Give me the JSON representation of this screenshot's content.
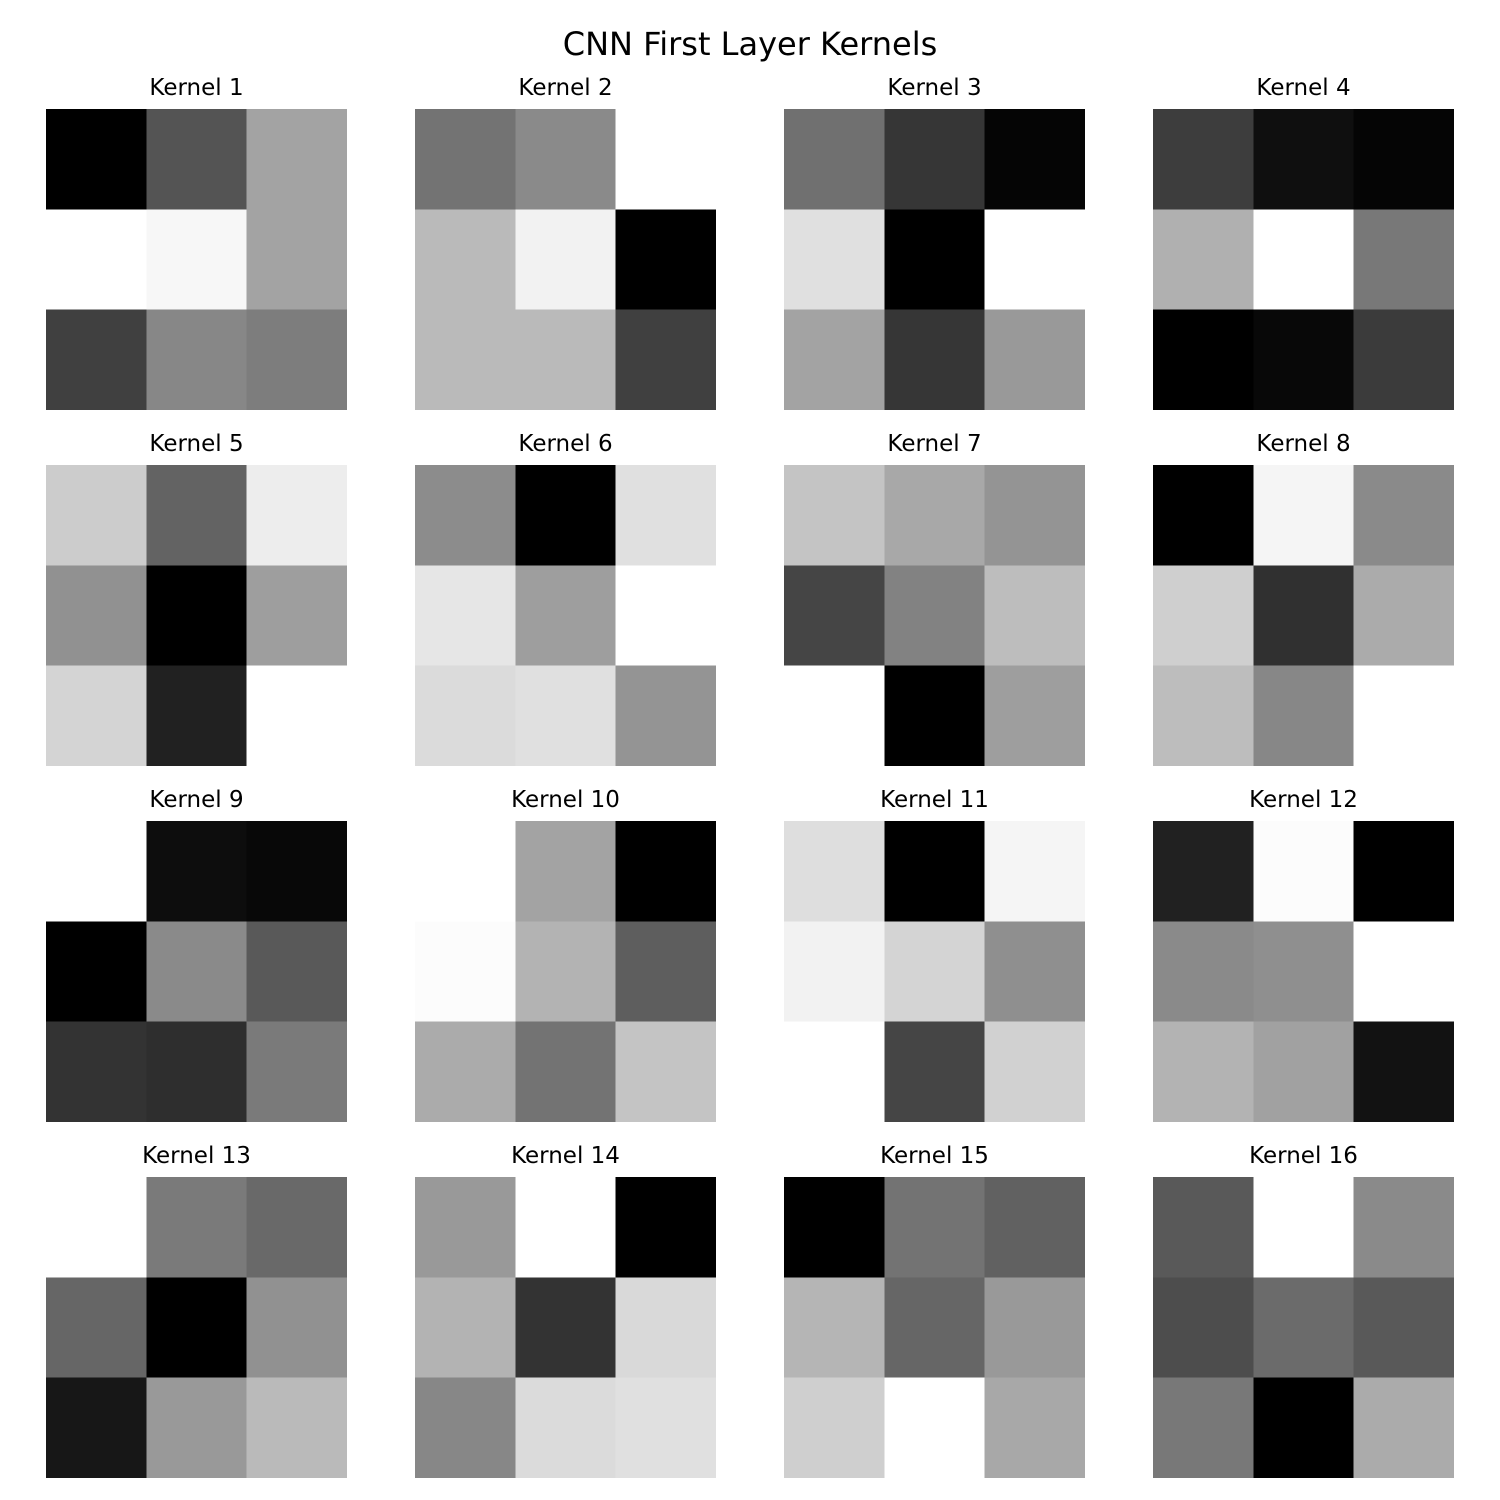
{
  "chart_data": {
    "type": "heatmap",
    "title": "CNN First Layer Kernels",
    "colormap": "gray",
    "value_scale": "grayscale intensity per cell, 0 = black, 1 = white",
    "grid": false,
    "axes": "off",
    "panels": [
      {
        "title": "Kernel 1",
        "values": [
          [
            0.0,
            0.33,
            0.64
          ],
          [
            1.0,
            0.97,
            0.64
          ],
          [
            0.25,
            0.53,
            0.49
          ]
        ]
      },
      {
        "title": "Kernel 2",
        "values": [
          [
            0.45,
            0.54,
            1.0
          ],
          [
            0.73,
            0.95,
            0.0
          ],
          [
            0.73,
            0.73,
            0.25
          ]
        ]
      },
      {
        "title": "Kernel 3",
        "values": [
          [
            0.44,
            0.21,
            0.02
          ],
          [
            0.88,
            0.0,
            1.0
          ],
          [
            0.64,
            0.21,
            0.6
          ]
        ]
      },
      {
        "title": "Kernel 4",
        "values": [
          [
            0.24,
            0.06,
            0.02
          ],
          [
            0.69,
            1.0,
            0.47
          ],
          [
            0.0,
            0.03,
            0.23
          ]
        ]
      },
      {
        "title": "Kernel 5",
        "values": [
          [
            0.8,
            0.39,
            0.93
          ],
          [
            0.57,
            0.0,
            0.62
          ],
          [
            0.83,
            0.13,
            1.0
          ]
        ]
      },
      {
        "title": "Kernel 6",
        "values": [
          [
            0.55,
            0.0,
            0.88
          ],
          [
            0.9,
            0.62,
            1.0
          ],
          [
            0.86,
            0.88,
            0.58
          ]
        ]
      },
      {
        "title": "Kernel 7",
        "values": [
          [
            0.77,
            0.66,
            0.58
          ],
          [
            0.27,
            0.51,
            0.74
          ],
          [
            1.0,
            0.0,
            0.62
          ]
        ]
      },
      {
        "title": "Kernel 8",
        "values": [
          [
            0.0,
            0.96,
            0.54
          ],
          [
            0.81,
            0.19,
            0.67
          ],
          [
            0.74,
            0.53,
            1.0
          ]
        ]
      },
      {
        "title": "Kernel 9",
        "values": [
          [
            1.0,
            0.05,
            0.03
          ],
          [
            0.0,
            0.54,
            0.35
          ],
          [
            0.2,
            0.18,
            0.48
          ]
        ]
      },
      {
        "title": "Kernel 10",
        "values": [
          [
            1.0,
            0.64,
            0.0
          ],
          [
            0.99,
            0.7,
            0.37
          ],
          [
            0.67,
            0.45,
            0.77
          ]
        ]
      },
      {
        "title": "Kernel 11",
        "values": [
          [
            0.87,
            0.0,
            0.96
          ],
          [
            0.95,
            0.83,
            0.56
          ],
          [
            1.0,
            0.27,
            0.82
          ]
        ]
      },
      {
        "title": "Kernel 12",
        "values": [
          [
            0.13,
            0.99,
            0.0
          ],
          [
            0.54,
            0.56,
            1.0
          ],
          [
            0.7,
            0.63,
            0.07
          ]
        ]
      },
      {
        "title": "Kernel 13",
        "values": [
          [
            1.0,
            0.48,
            0.41
          ],
          [
            0.4,
            0.0,
            0.57
          ],
          [
            0.09,
            0.6,
            0.73
          ]
        ]
      },
      {
        "title": "Kernel 14",
        "values": [
          [
            0.6,
            1.0,
            0.0
          ],
          [
            0.7,
            0.2,
            0.85
          ],
          [
            0.53,
            0.86,
            0.88
          ]
        ]
      },
      {
        "title": "Kernel 15",
        "values": [
          [
            0.0,
            0.45,
            0.38
          ],
          [
            0.71,
            0.4,
            0.6
          ],
          [
            0.81,
            1.0,
            0.66
          ]
        ]
      },
      {
        "title": "Kernel 16",
        "values": [
          [
            0.35,
            1.0,
            0.54
          ],
          [
            0.3,
            0.42,
            0.35
          ],
          [
            0.47,
            0.0,
            0.67
          ]
        ]
      }
    ]
  }
}
